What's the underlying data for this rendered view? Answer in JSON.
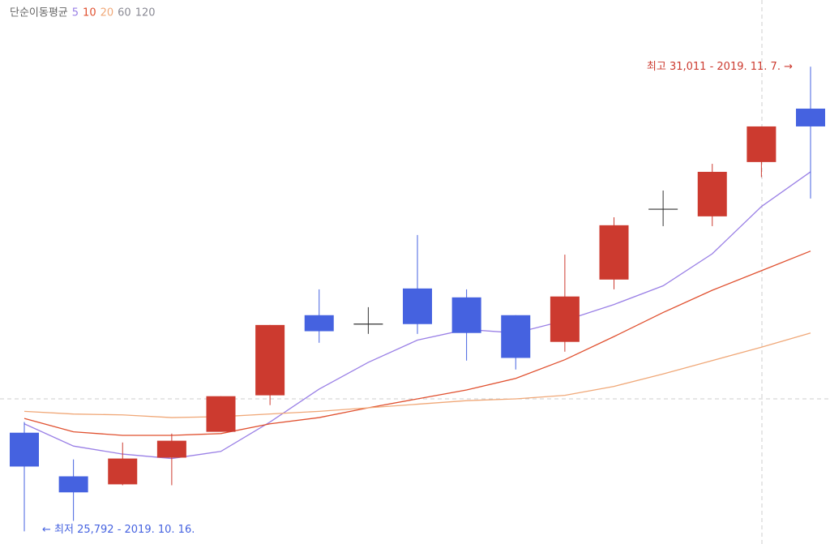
{
  "chart_data": {
    "type": "candlestick",
    "ylim": [
      25650,
      31760
    ],
    "up_color": "#cc3a2f",
    "down_color": "#4562e0",
    "flat_color": "#333333",
    "candles": {
      "open": [
        26900,
        26410,
        26320,
        26620,
        26910,
        27320,
        28220,
        28120,
        28520,
        28420,
        28220,
        27920,
        28620,
        29410,
        29330,
        29940,
        30540
      ],
      "high": [
        27020,
        26600,
        26790,
        26890,
        27310,
        28110,
        28510,
        28310,
        29120,
        28510,
        28220,
        28900,
        29320,
        29620,
        29920,
        30340,
        31011
      ],
      "low": [
        25792,
        25910,
        26310,
        26310,
        26910,
        27210,
        27910,
        28010,
        28010,
        27710,
        27610,
        27810,
        28510,
        29220,
        29220,
        29770,
        29530
      ],
      "close": [
        26520,
        26230,
        26610,
        26810,
        27310,
        28110,
        28040,
        28120,
        28120,
        28020,
        27740,
        28430,
        29230,
        29410,
        29830,
        30340,
        30340
      ]
    },
    "legend_title": "단순이동평균",
    "series": [
      {
        "name": "5",
        "color": "#9a80e6",
        "values": [
          27000,
          26750,
          26660,
          26610,
          26690,
          27020,
          27390,
          27690,
          27940,
          28060,
          28020,
          28160,
          28340,
          28550,
          28910,
          29440,
          29830
        ]
      },
      {
        "name": "10",
        "color": "#e0502f",
        "values": [
          27060,
          26910,
          26870,
          26870,
          26890,
          27000,
          27070,
          27180,
          27280,
          27380,
          27510,
          27720,
          27980,
          28250,
          28500,
          28720,
          28940
        ]
      },
      {
        "name": "20",
        "color": "#f0a878",
        "values": [
          27140,
          27110,
          27100,
          27070,
          27080,
          27110,
          27140,
          27180,
          27220,
          27260,
          27280,
          27320,
          27420,
          27560,
          27710,
          27860,
          28020
        ]
      },
      {
        "name": "60",
        "color": "#8a8a94",
        "values": [
          null,
          null,
          null,
          null,
          null,
          null,
          null,
          null,
          null,
          null,
          null,
          null,
          null,
          null,
          null,
          null,
          null
        ]
      },
      {
        "name": "120",
        "color": "#8a8a94",
        "values": [
          null,
          null,
          null,
          null,
          null,
          null,
          null,
          null,
          null,
          null,
          null,
          null,
          null,
          null,
          null,
          null,
          null
        ]
      }
    ],
    "annotations": [
      {
        "text": "최고 31,011 - 2019. 11. 7. →",
        "color": "#cc3a2f"
      },
      {
        "text": "← 최저 25,792 - 2019. 10. 16.",
        "color": "#4562e0"
      }
    ]
  }
}
